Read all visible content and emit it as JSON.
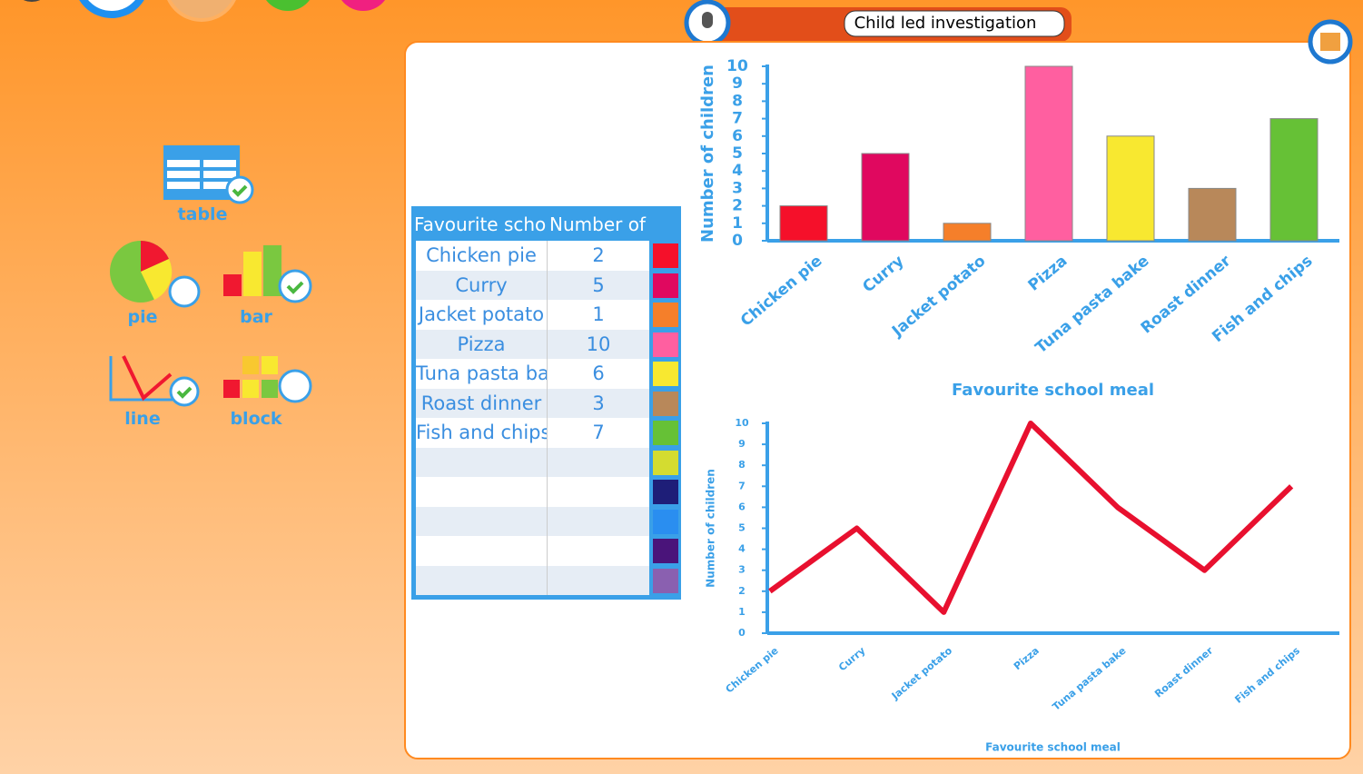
{
  "header": {
    "title": "Child led investigation"
  },
  "tools": [
    {
      "label": "table"
    },
    {
      "label": "pie"
    },
    {
      "label": "bar"
    },
    {
      "label": "line"
    },
    {
      "label": "block"
    }
  ],
  "table": {
    "headers": [
      "Favourite school meal",
      "Number of children"
    ],
    "swatches": [
      "#f5102a",
      "#e0085f",
      "#f57f2a",
      "#ff5fa0",
      "#f8e830",
      "#b8885a",
      "#66c136",
      "#d4dc30",
      "#1e1e78",
      "#2a8ef0",
      "#4a147a",
      "#8a60b0"
    ]
  },
  "chart_data": [
    {
      "type": "bar",
      "title": "Favourite school meal",
      "x_label": "Favourite school meal",
      "y_label": "Number of children",
      "categories": [
        "Chicken pie",
        "Curry",
        "Jacket potato",
        "Pizza",
        "Tuna pasta bake",
        "Roast dinner",
        "Fish and chips"
      ],
      "values": [
        2,
        5,
        1,
        10,
        6,
        3,
        7
      ],
      "colors": [
        "#f5102a",
        "#e0085f",
        "#f57f2a",
        "#ff5fa0",
        "#f8e830",
        "#b8885a",
        "#66c136"
      ],
      "ylim": [
        0,
        10
      ],
      "yticks": [
        0,
        1,
        2,
        3,
        4,
        5,
        6,
        7,
        8,
        9,
        10
      ]
    },
    {
      "type": "line",
      "x_label": "Favourite school meal",
      "y_label": "Number of children",
      "categories": [
        "Chicken pie",
        "Curry",
        "Jacket potato",
        "Pizza",
        "Tuna pasta bake",
        "Roast dinner",
        "Fish and chips"
      ],
      "values": [
        2,
        5,
        1,
        10,
        6,
        3,
        7
      ],
      "color": "#e8102f",
      "ylim": [
        0,
        10
      ],
      "yticks": [
        0,
        1,
        2,
        3,
        4,
        5,
        6,
        7,
        8,
        9,
        10
      ]
    }
  ]
}
